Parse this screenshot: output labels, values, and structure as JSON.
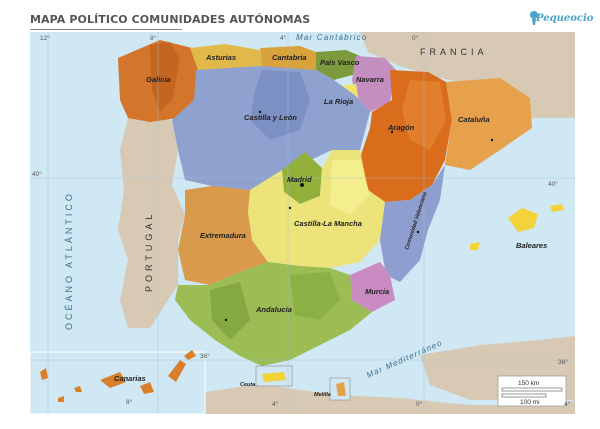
{
  "title": "MAPA POLÍTICO COMUNIDADES AUTÓNOMAS",
  "brand": "Pequeocio",
  "sea_labels": {
    "cantabrico": "Mar Cantábrico",
    "mediterraneo": "Mar Mediterráneo",
    "atlantico": "OCÉANO ATLÁNTICO"
  },
  "countries": {
    "france": "FRANCIA",
    "portugal": "PORTUGAL"
  },
  "regions": {
    "galicia": "Galicia",
    "asturias": "Asturias",
    "cantabria": "Cantabria",
    "pais_vasco": "País Vasco",
    "navarra": "Navarra",
    "la_rioja": "La Rioja",
    "aragon": "Aragón",
    "cataluna": "Cataluña",
    "castilla_leon": "Castilla y León",
    "madrid": "Madrid",
    "castilla_mancha": "Castilla-La Mancha",
    "extremadura": "Extremadura",
    "valencia": "Comunidad Valenciana",
    "murcia": "Murcia",
    "andalucia": "Andalucía",
    "baleares": "Baleares",
    "canarias": "Canarias",
    "ceuta": "Ceuta",
    "melilla": "Melilla"
  },
  "graticule": {
    "lon_12w": "12°",
    "lon_8w_top": "8°",
    "lon_4w_top": "4°",
    "lon_0_top": "0°",
    "lat_40_left": "40°",
    "lat_40_right": "40°",
    "lat_36_left": "36°",
    "lat_36_right": "36°",
    "lon_8w_bottom": "8°",
    "lon_4w_bottom": "4°",
    "lon_0_bottom": "0°",
    "lon_4e_bottom": "4°"
  },
  "scale": {
    "km": "150 km",
    "mi": "100 mi"
  },
  "colors": {
    "sea": "#cfe8f3",
    "foreign_land": "#d8c9b5",
    "galicia": "#d3752a",
    "asturias": "#e0b94a",
    "cantabria": "#d9a23a",
    "pais_vasco": "#7d9a3f",
    "navarra": "#c48fc0",
    "la_rioja": "#f2e66a",
    "aragon": "#d96d1c",
    "cataluna": "#e7a14d",
    "castilla_leon": "#8fa1cf",
    "madrid": "#93b03b",
    "castilla_mancha": "#ece47a",
    "extremadura": "#d99a4c",
    "valencia": "#8e9fcf",
    "murcia": "#c98bc1",
    "andalucia": "#9bbd54",
    "baleares": "#f3d23a",
    "canarias": "#d97f2a"
  }
}
